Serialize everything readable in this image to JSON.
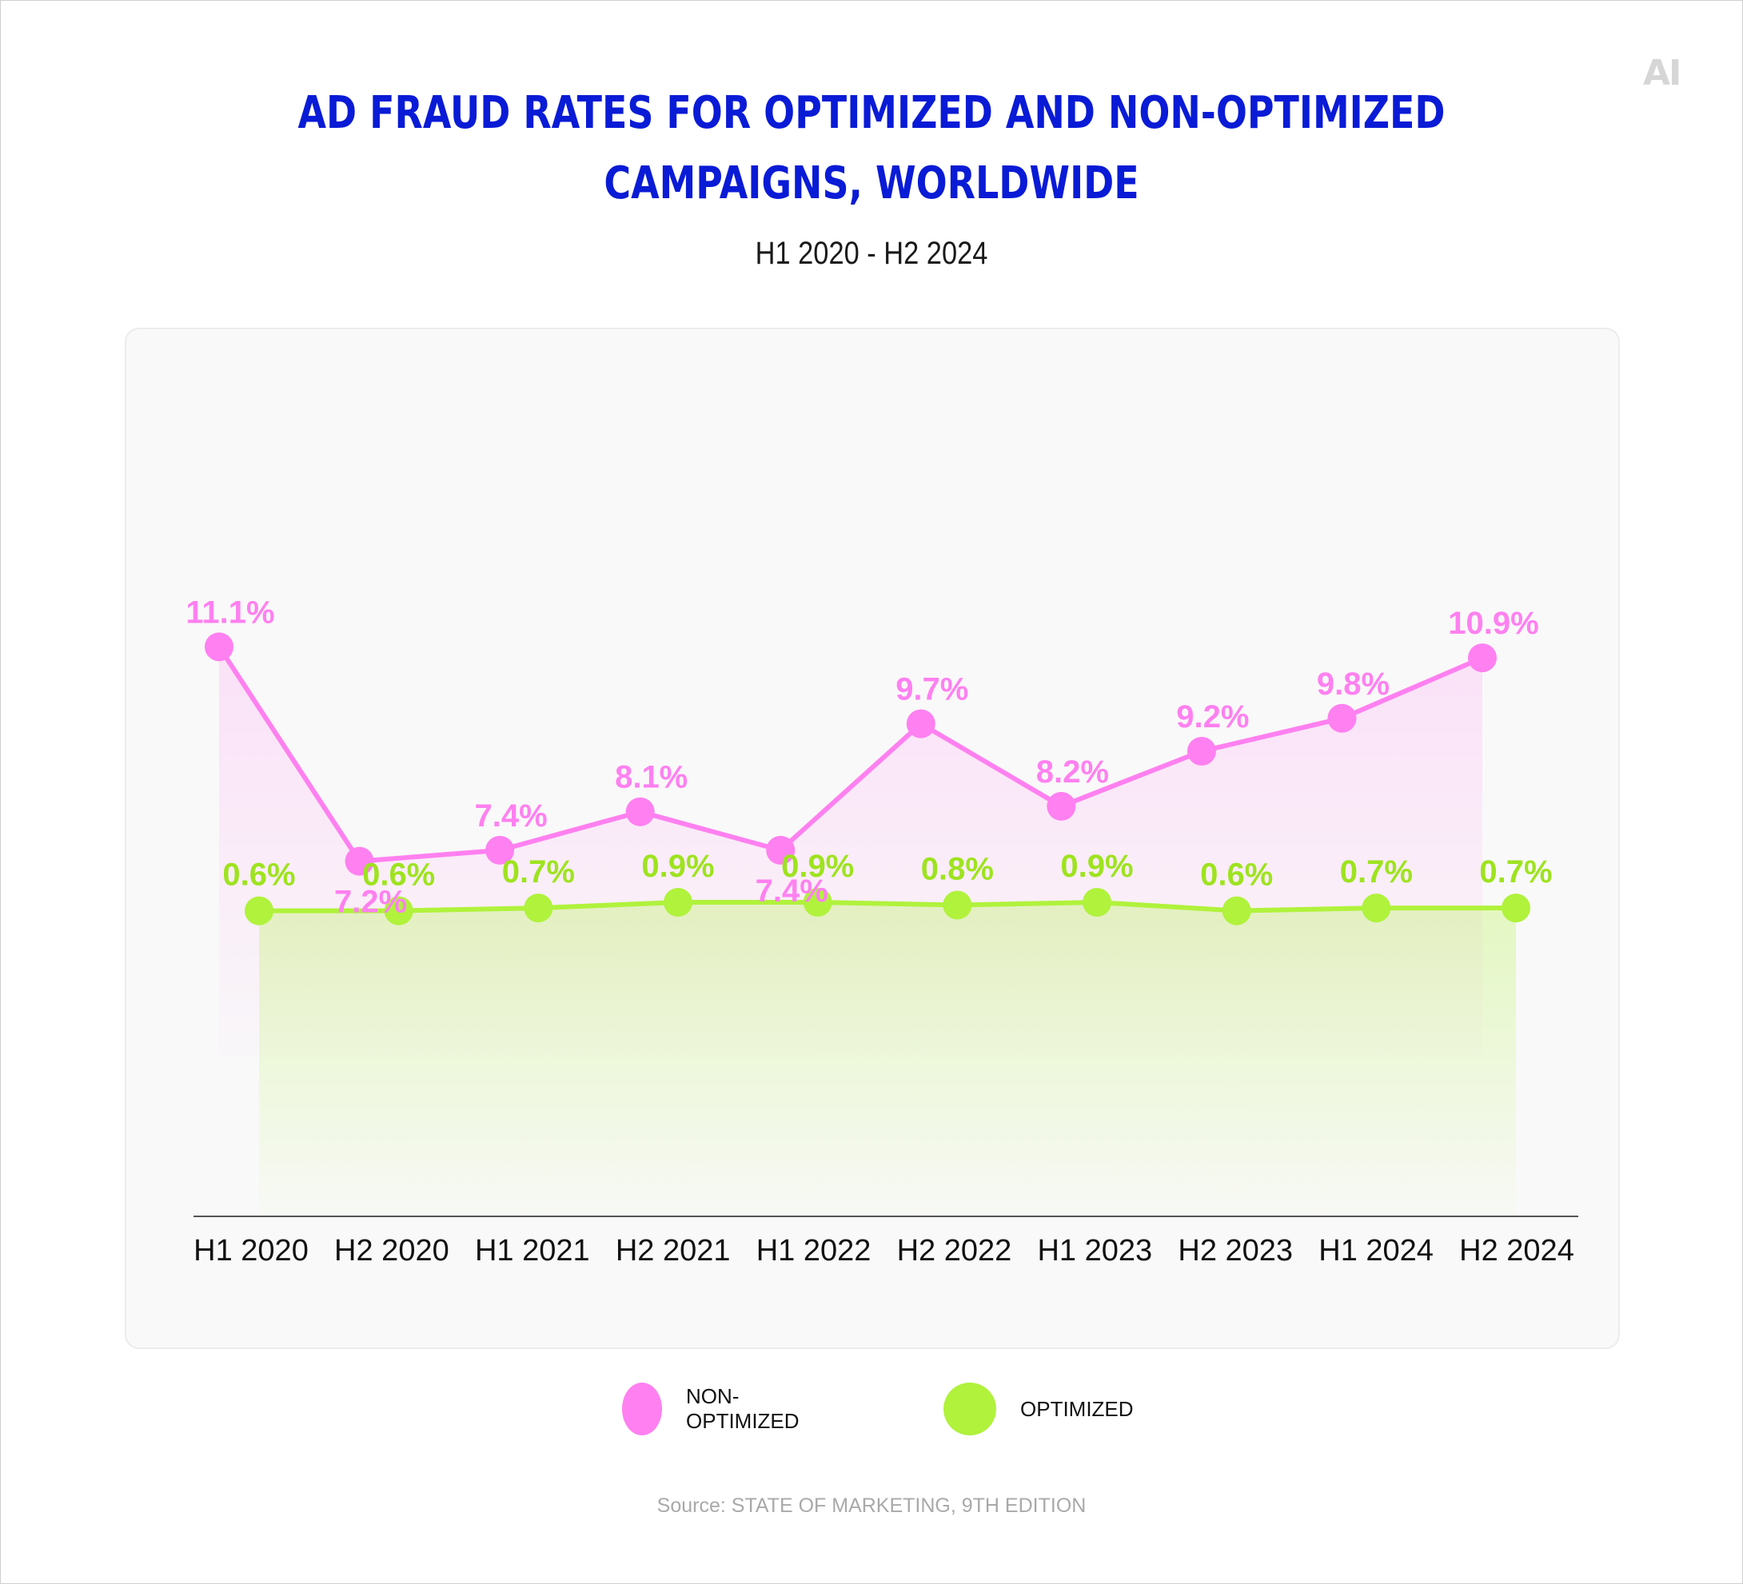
{
  "brand": {
    "logo_text": "AI"
  },
  "header": {
    "title_line1": "AD FRAUD RATES FOR OPTIMIZED AND NON-OPTIMIZED",
    "title_line2": "CAMPAIGNS, WORLDWIDE",
    "subtitle": "H1 2020 - H2 2024"
  },
  "colors": {
    "title": "#0a1bd6",
    "non_optimized": "#ff80f0",
    "optimized": "#b0f23c",
    "label_optimized": "#9ee31f"
  },
  "legend": {
    "items": [
      {
        "label": "NON-OPTIMIZED",
        "color": "#ff80f0"
      },
      {
        "label": "OPTIMIZED",
        "color": "#b0f23c"
      }
    ]
  },
  "footer": {
    "source": "Source: STATE OF MARKETING, 9TH EDITION"
  },
  "chart_data": {
    "type": "line",
    "title": "AD FRAUD RATES FOR OPTIMIZED AND NON-OPTIMIZED CAMPAIGNS, WORLDWIDE",
    "subtitle": "H1 2020 - H2 2024",
    "categories": [
      "H1 2020",
      "H2 2020",
      "H1 2021",
      "H2 2021",
      "H1 2022",
      "H2 2022",
      "H1 2023",
      "H2 2023",
      "H1 2024",
      "H2 2024"
    ],
    "series": [
      {
        "name": "NON-OPTIMIZED",
        "values": [
          11.1,
          7.2,
          7.4,
          8.1,
          7.4,
          9.7,
          8.2,
          9.2,
          9.8,
          10.9
        ],
        "labels": [
          "11.1%",
          "7.2%",
          "7.4%",
          "8.1%",
          "7.4%",
          "9.7%",
          "8.2%",
          "9.2%",
          "9.8%",
          "10.9%"
        ],
        "label_position": [
          "above",
          "below",
          "above",
          "above",
          "below",
          "above",
          "above",
          "above",
          "above",
          "above"
        ]
      },
      {
        "name": "OPTIMIZED",
        "values": [
          0.6,
          0.6,
          0.7,
          0.9,
          0.9,
          0.8,
          0.9,
          0.6,
          0.7,
          0.7
        ],
        "labels": [
          "0.6%",
          "0.6%",
          "0.7%",
          "0.9%",
          "0.9%",
          "0.8%",
          "0.9%",
          "0.6%",
          "0.7%",
          "0.7%"
        ]
      }
    ],
    "unit": "%",
    "xlabel": "",
    "ylabel": "",
    "grid": false,
    "y_axis_visible": false,
    "legend_position": "bottom-center",
    "area_fill": true
  }
}
